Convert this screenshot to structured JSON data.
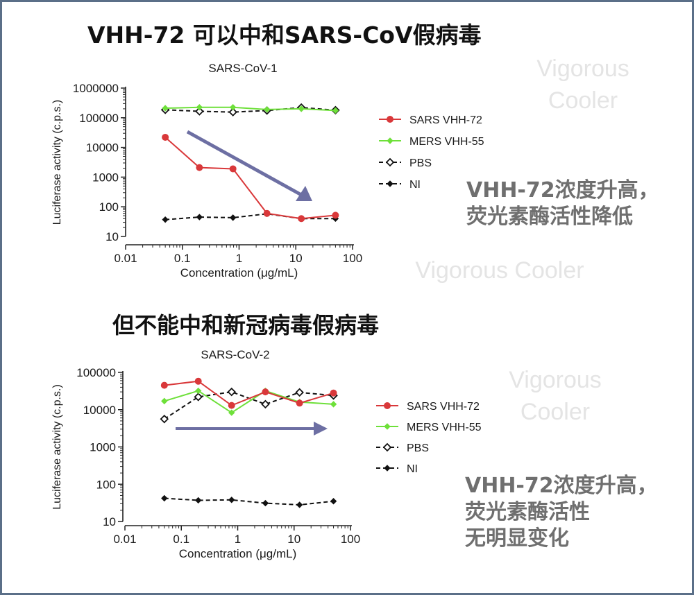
{
  "headings": {
    "top": "VHH-72 可以中和SARS-CoV假病毒",
    "bottom": "但不能中和新冠病毒假病毒"
  },
  "notes": {
    "top": [
      "VHH-72浓度升高，",
      "荧光素酶活性降低"
    ],
    "bottom": [
      "VHH-72浓度升高，",
      "荧光素酶活性",
      "无明显变化"
    ]
  },
  "watermarks": {
    "a": [
      "Vigorous",
      "Cooler"
    ],
    "b": [
      "Vigorous Cooler"
    ],
    "c": [
      "Vigorous",
      "Cooler"
    ]
  },
  "colors": {
    "sars": "#d9383a",
    "mers": "#6ee03a",
    "pbs": "#111111",
    "ni": "#111111",
    "arrow": "#6d6fa3"
  },
  "chart_data": [
    {
      "type": "line",
      "title": "SARS-CoV-1",
      "xlabel": "Concentration (μg/mL)",
      "ylabel": "Luciferase activity (c.p.s.)",
      "xscale": "log",
      "yscale": "log",
      "xlim": [
        0.01,
        100
      ],
      "ylim": [
        10,
        1000000
      ],
      "xticks": [
        "0.01",
        "0.1",
        "1",
        "10",
        "100"
      ],
      "yticks": [
        "10",
        "100",
        "1000",
        "10000",
        "100000",
        "1000000"
      ],
      "x": [
        0.05,
        0.2,
        0.78,
        3.1,
        12.5,
        50
      ],
      "series": [
        {
          "name": "SARS VHH-72",
          "marker": "circle",
          "dash": false,
          "values": [
            22000,
            2100,
            1900,
            60,
            40,
            52
          ]
        },
        {
          "name": "MERS VHH-55",
          "marker": "diamond",
          "dash": false,
          "values": [
            210000,
            225000,
            225000,
            190000,
            200000,
            175000
          ]
        },
        {
          "name": "PBS",
          "marker": "diamond-open",
          "dash": true,
          "values": [
            185000,
            165000,
            155000,
            175000,
            220000,
            180000
          ]
        },
        {
          "name": "NI",
          "marker": "diamond",
          "dash": true,
          "values": [
            37,
            45,
            43,
            58,
            40,
            40
          ]
        }
      ],
      "annotation": "downward-arrow",
      "legend": "right"
    },
    {
      "type": "line",
      "title": "SARS-CoV-2",
      "xlabel": "Concentration (μg/mL)",
      "ylabel": "Luciferase activity (c.p.s.)",
      "xscale": "log",
      "yscale": "log",
      "xlim": [
        0.01,
        100
      ],
      "ylim": [
        10,
        100000
      ],
      "xticks": [
        "0.01",
        "0.1",
        "1",
        "10",
        "100"
      ],
      "yticks": [
        "10",
        "100",
        "1000",
        "10000",
        "100000"
      ],
      "x": [
        0.05,
        0.2,
        0.78,
        3.1,
        12.5,
        50
      ],
      "series": [
        {
          "name": "SARS VHH-72",
          "marker": "circle",
          "dash": false,
          "values": [
            45000,
            58000,
            13000,
            30000,
            15000,
            28000
          ]
        },
        {
          "name": "MERS VHH-55",
          "marker": "diamond",
          "dash": false,
          "values": [
            17000,
            32000,
            8300,
            32000,
            16000,
            14000
          ]
        },
        {
          "name": "PBS",
          "marker": "diamond-open",
          "dash": true,
          "values": [
            5600,
            22000,
            30000,
            14000,
            29000,
            24000
          ]
        },
        {
          "name": "NI",
          "marker": "diamond",
          "dash": true,
          "values": [
            42,
            37,
            38,
            31,
            28,
            35
          ]
        }
      ],
      "annotation": "horizontal-arrow",
      "legend": "right"
    }
  ]
}
